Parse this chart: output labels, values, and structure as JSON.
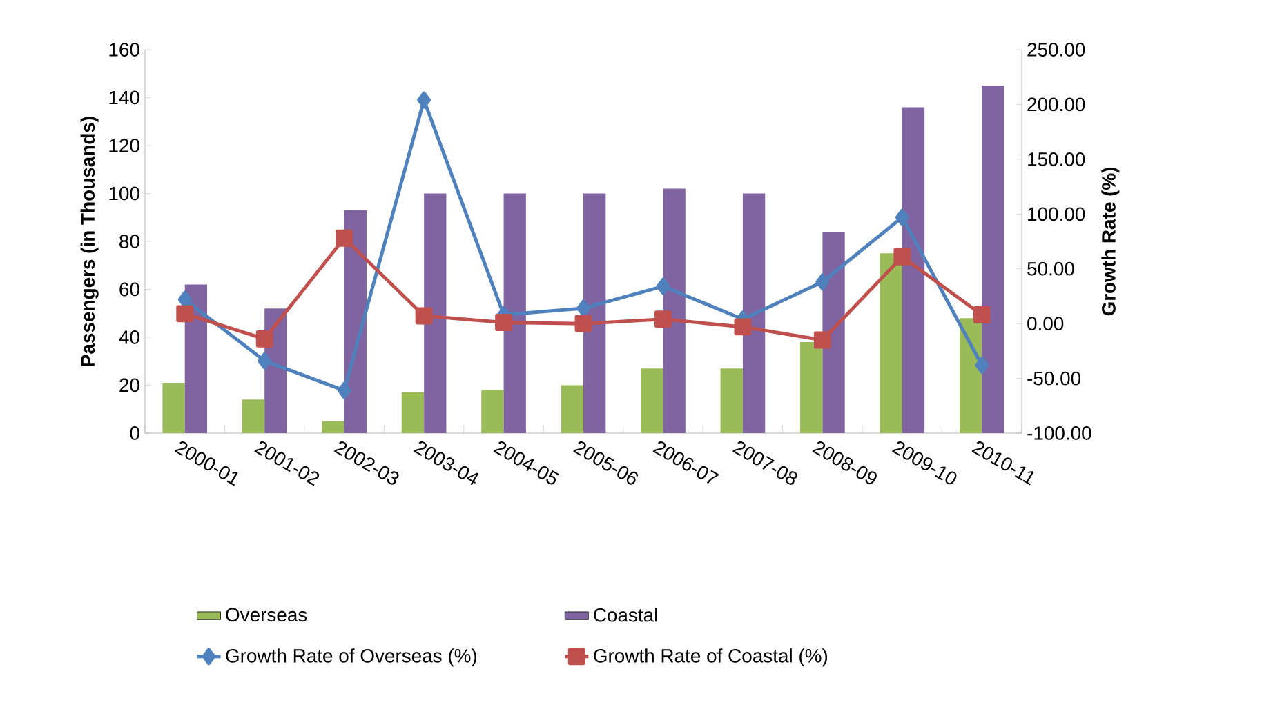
{
  "chart_data": {
    "type": "bar",
    "categories": [
      "2000-01",
      "2001-02",
      "2002-03",
      "2003-04",
      "2004-05",
      "2005-06",
      "2006-07",
      "2007-08",
      "2008-09",
      "2009-10",
      "2010-11"
    ],
    "ylabel": "Passengers (in Thousands)",
    "y2label": "Growth Rate (%)",
    "ylim": [
      0,
      160
    ],
    "yticks": [
      0,
      20,
      40,
      60,
      80,
      100,
      120,
      140,
      160
    ],
    "y2lim": [
      -100,
      250
    ],
    "y2ticks": [
      {
        "value": -100,
        "label": "-100.00"
      },
      {
        "value": -50,
        "label": "-50.00"
      },
      {
        "value": 0,
        "label": "0.00"
      },
      {
        "value": 50,
        "label": "50.00"
      },
      {
        "value": 100,
        "label": "100.00"
      },
      {
        "value": 150,
        "label": "150.00"
      },
      {
        "value": 200,
        "label": "200.00"
      },
      {
        "value": 250,
        "label": "250.00"
      }
    ],
    "legend": "bottom",
    "grid": false,
    "series": [
      {
        "name": "Overseas",
        "color": "#9bbb59",
        "values": [
          21,
          14,
          5,
          17,
          18,
          20,
          27,
          27,
          38,
          75,
          48
        ]
      },
      {
        "name": "Coastal",
        "color": "#8064a2",
        "values": [
          62,
          52,
          93,
          100,
          100,
          100,
          102,
          100,
          84,
          136,
          145
        ]
      },
      {
        "name": "Growth Rate of Overseas (%)",
        "type": "line",
        "axis": "y2",
        "marker": "diamond",
        "color": "#4f81bd",
        "values": [
          22,
          -34,
          -61,
          204,
          8,
          14,
          34,
          4,
          38,
          97,
          -38
        ]
      },
      {
        "name": "Growth Rate of Coastal (%)",
        "type": "line",
        "axis": "y2",
        "marker": "square",
        "color": "#c0504d",
        "values": [
          9,
          -14,
          78,
          7,
          1,
          0,
          4,
          -3,
          -15,
          61,
          8
        ]
      }
    ]
  }
}
